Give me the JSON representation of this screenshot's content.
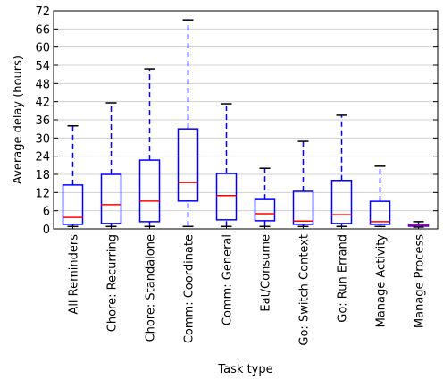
{
  "chart_data": {
    "type": "box",
    "y_label": "Average delay (hours)",
    "x_label": "Task type",
    "categories": [
      "All Reminders",
      "Chore: Recurring",
      "Chore: Standalone",
      "Comm: Coordinate",
      "Comm: General",
      "Eat/Consume",
      "Go: Switch Context",
      "Go: Run Errand",
      "Manage Activity",
      "Manage Process"
    ],
    "boxes": [
      {
        "low": 0.8,
        "q1": 1.5,
        "median": 3.8,
        "q3": 14.5,
        "high": 34
      },
      {
        "low": 0.8,
        "q1": 1.8,
        "median": 8,
        "q3": 18,
        "high": 41.6
      },
      {
        "low": 0.8,
        "q1": 2.4,
        "median": 9.2,
        "q3": 22.7,
        "high": 52.8
      },
      {
        "low": 0.8,
        "q1": 9.2,
        "median": 15.3,
        "q3": 33,
        "high": 69
      },
      {
        "low": 0.8,
        "q1": 3,
        "median": 11,
        "q3": 18.3,
        "high": 41.3
      },
      {
        "low": 0.8,
        "q1": 2.7,
        "median": 5,
        "q3": 9.7,
        "high": 20
      },
      {
        "low": 0.8,
        "q1": 1.5,
        "median": 2.6,
        "q3": 12.4,
        "high": 28.9
      },
      {
        "low": 0.8,
        "q1": 1.8,
        "median": 4.7,
        "q3": 16,
        "high": 37.5
      },
      {
        "low": 0.8,
        "q1": 1.5,
        "median": 2.4,
        "q3": 9.1,
        "high": 20.7
      },
      {
        "low": 0.6,
        "q1": 0.9,
        "median": 1.2,
        "q3": 1.5,
        "high": 2.4
      }
    ],
    "box_color": "#0000ff",
    "median_color": "#ff0000",
    "cap_color": "#000000",
    "ylim": [
      0,
      72
    ],
    "yticks": [
      0,
      6,
      12,
      18,
      24,
      30,
      36,
      42,
      48,
      54,
      60,
      66,
      72
    ],
    "grid": true
  }
}
